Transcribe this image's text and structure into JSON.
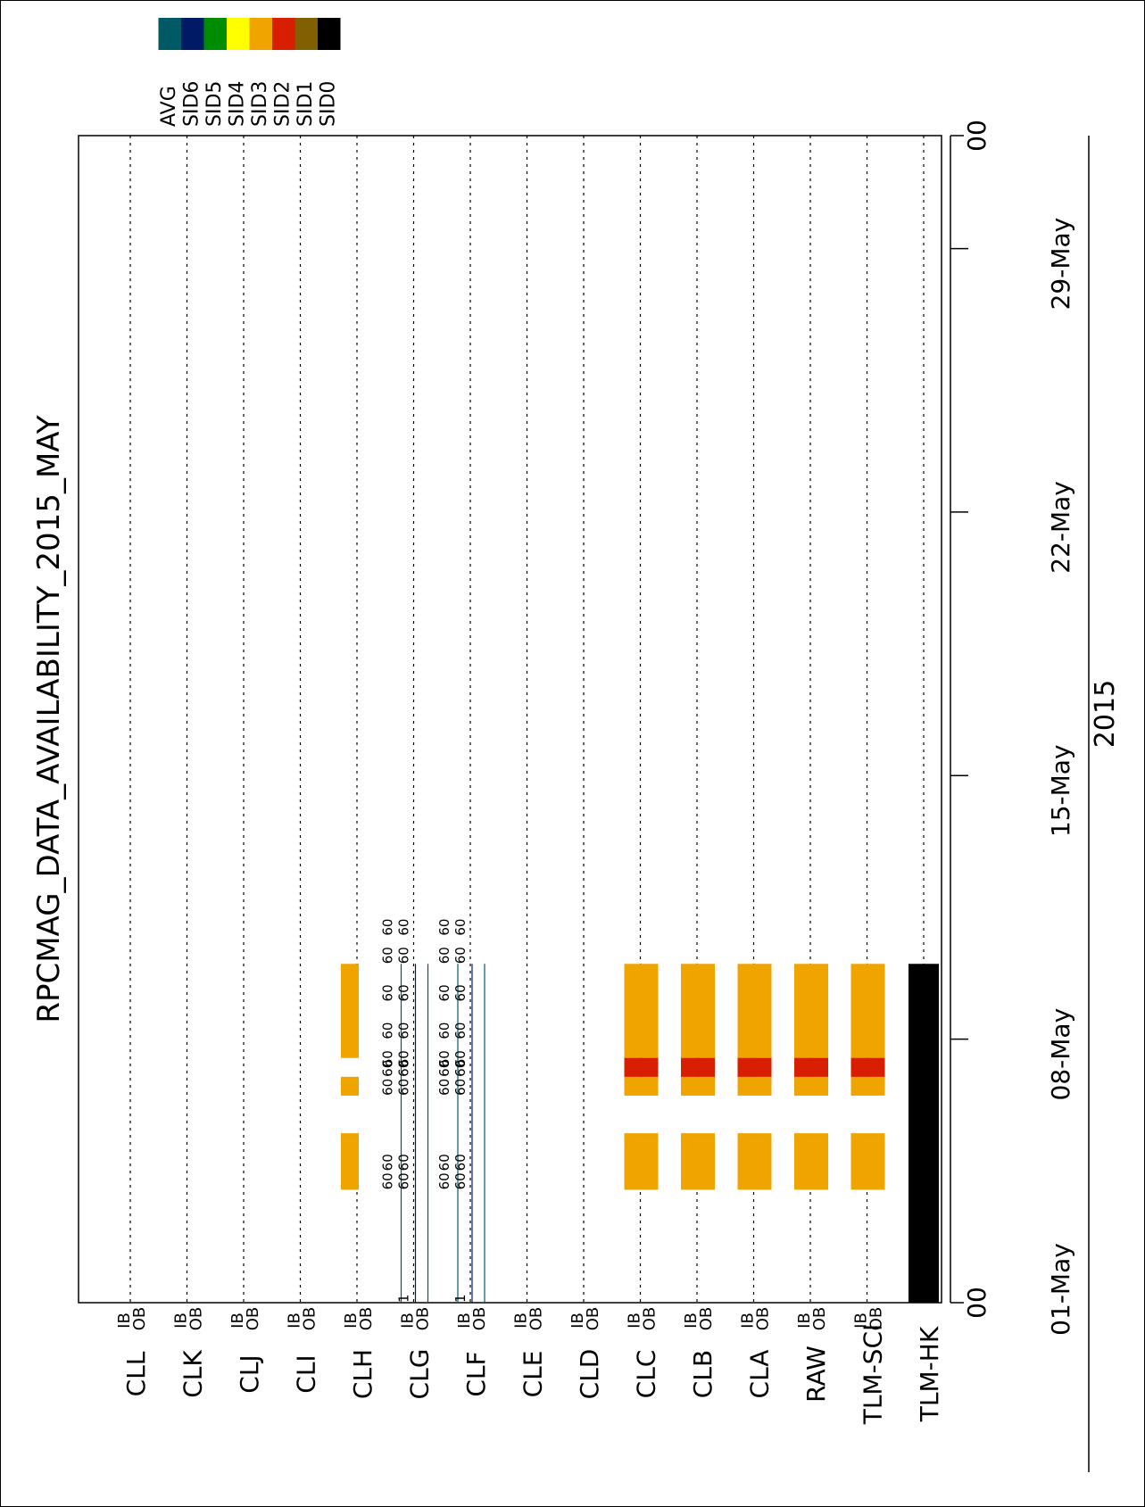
{
  "chart_data": {
    "type": "heatmap",
    "title": "RPCMAG_DATA_AVAILABILITY_2015_MAY",
    "year_label": "2015",
    "time_axis": {
      "start": "2015-05-01 00:00",
      "end": "2015-06-01 00:00",
      "ticks": [
        "01-May",
        "08-May",
        "15-May",
        "22-May",
        "29-May"
      ],
      "end_labels": [
        "00",
        "00"
      ]
    },
    "rows": [
      "CLL",
      "CLK",
      "CLJ",
      "CLI",
      "CLH",
      "CLG",
      "CLF",
      "CLE",
      "CLD",
      "CLC",
      "CLB",
      "CLA",
      "RAW",
      "TLM-SCI",
      "TLM-HK"
    ],
    "sensor_labels": [
      "IB",
      "OB"
    ],
    "legend": [
      {
        "name": "AVG",
        "color": "#005a66"
      },
      {
        "name": "SID6",
        "color": "#001a66"
      },
      {
        "name": "SID5",
        "color": "#008c00"
      },
      {
        "name": "SID4",
        "color": "#ffff00"
      },
      {
        "name": "SID3",
        "color": "#f0a400"
      },
      {
        "name": "SID2",
        "color": "#d81e00"
      },
      {
        "name": "SID1",
        "color": "#806000"
      },
      {
        "name": "SID0",
        "color": "#000000"
      }
    ],
    "availability": [
      {
        "row": "CLH",
        "sensor": "IB",
        "sid": "SID3",
        "from": "2015-05-04",
        "to": "2015-05-10"
      },
      {
        "row": "CLC",
        "sensor": "IB",
        "sid": "SID3",
        "from": "2015-05-04",
        "to": "2015-05-10"
      },
      {
        "row": "CLC",
        "sensor": "OB",
        "sid": "SID3",
        "from": "2015-05-04",
        "to": "2015-05-10"
      },
      {
        "row": "CLC",
        "sensor": "IB",
        "sid": "SID2",
        "from": "2015-05-07 00:00",
        "to": "2015-05-07 12:00"
      },
      {
        "row": "CLC",
        "sensor": "OB",
        "sid": "SID2",
        "from": "2015-05-07 00:00",
        "to": "2015-05-07 12:00"
      },
      {
        "row": "CLB",
        "sensor": "IB",
        "sid": "SID3",
        "from": "2015-05-04",
        "to": "2015-05-10"
      },
      {
        "row": "CLB",
        "sensor": "OB",
        "sid": "SID3",
        "from": "2015-05-04",
        "to": "2015-05-10"
      },
      {
        "row": "CLB",
        "sensor": "IB",
        "sid": "SID2",
        "from": "2015-05-07 00:00",
        "to": "2015-05-07 12:00"
      },
      {
        "row": "CLB",
        "sensor": "OB",
        "sid": "SID2",
        "from": "2015-05-07 00:00",
        "to": "2015-05-07 12:00"
      },
      {
        "row": "CLA",
        "sensor": "IB",
        "sid": "SID3",
        "from": "2015-05-04",
        "to": "2015-05-10"
      },
      {
        "row": "CLA",
        "sensor": "OB",
        "sid": "SID3",
        "from": "2015-05-04",
        "to": "2015-05-10"
      },
      {
        "row": "CLA",
        "sensor": "IB",
        "sid": "SID2",
        "from": "2015-05-07 00:00",
        "to": "2015-05-07 12:00"
      },
      {
        "row": "CLA",
        "sensor": "OB",
        "sid": "SID2",
        "from": "2015-05-07 00:00",
        "to": "2015-05-07 12:00"
      },
      {
        "row": "RAW",
        "sensor": "IB",
        "sid": "SID3",
        "from": "2015-05-04",
        "to": "2015-05-10"
      },
      {
        "row": "RAW",
        "sensor": "OB",
        "sid": "SID3",
        "from": "2015-05-04",
        "to": "2015-05-10"
      },
      {
        "row": "RAW",
        "sensor": "IB",
        "sid": "SID2",
        "from": "2015-05-07 00:00",
        "to": "2015-05-07 12:00"
      },
      {
        "row": "RAW",
        "sensor": "OB",
        "sid": "SID2",
        "from": "2015-05-07 00:00",
        "to": "2015-05-07 12:00"
      },
      {
        "row": "TLM-SCI",
        "sensor": "IB",
        "sid": "SID3",
        "from": "2015-05-04",
        "to": "2015-05-10"
      },
      {
        "row": "TLM-SCI",
        "sensor": "OB",
        "sid": "SID3",
        "from": "2015-05-04",
        "to": "2015-05-10"
      },
      {
        "row": "TLM-SCI",
        "sensor": "IB",
        "sid": "SID2",
        "from": "2015-05-07 00:00",
        "to": "2015-05-07 12:00"
      },
      {
        "row": "TLM-SCI",
        "sensor": "OB",
        "sid": "SID2",
        "from": "2015-05-07 00:00",
        "to": "2015-05-07 12:00"
      },
      {
        "row": "TLM-HK",
        "sensor": "ALL",
        "sid": "SID0",
        "from": "2015-05-01",
        "to": "2015-05-10"
      }
    ],
    "gaps": [
      {
        "from": "2015-05-05 12:00",
        "to": "2015-05-06 12:00"
      },
      {
        "row": "CLH",
        "from": "2015-05-07 00:00",
        "to": "2015-05-07 12:00"
      }
    ],
    "cadence_rows": [
      {
        "row": "CLG",
        "lines": [
          "AVG",
          "SID6"
        ],
        "from": "2015-05-01",
        "to": "2015-05-10"
      },
      {
        "row": "CLF",
        "lines": [
          "AVG",
          "SID6"
        ],
        "from": "2015-05-01",
        "to": "2015-05-10"
      }
    ],
    "cadence_labels": {
      "upper_text": "60",
      "lower_text": "60",
      "first_value_text": "1",
      "upper_dates": [
        "2015-05-04",
        "2015-05-04 12:00",
        "2015-05-06 12:00",
        "2015-05-07",
        "2015-05-07 06:00",
        "2015-05-08",
        "2015-05-09",
        "2015-05-10",
        "2015-05-10 18:00"
      ],
      "lower_dates": [
        "2015-05-01",
        "2015-05-04",
        "2015-05-04 12:00",
        "2015-05-06 12:00",
        "2015-05-07",
        "2015-05-07 06:00",
        "2015-05-08",
        "2015-05-09",
        "2015-05-10",
        "2015-05-10 18:00"
      ]
    }
  }
}
